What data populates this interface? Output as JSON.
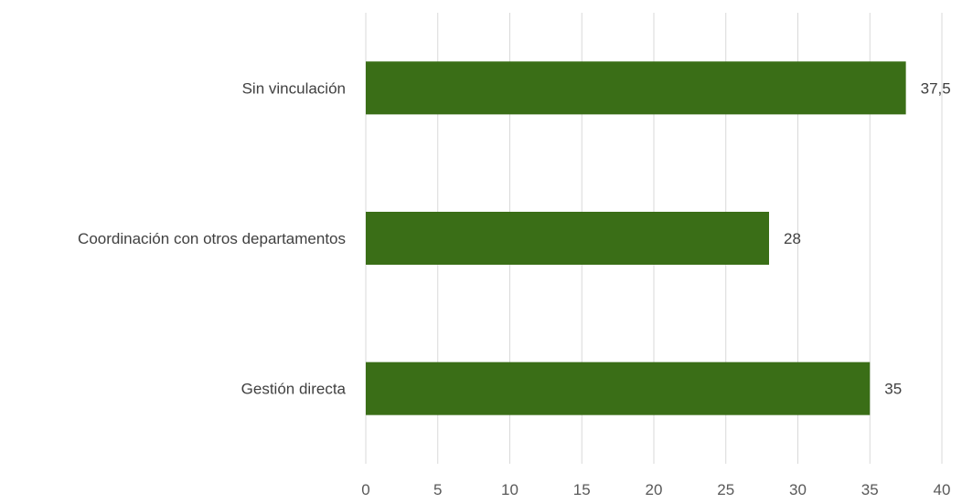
{
  "chart_data": {
    "type": "bar",
    "orientation": "horizontal",
    "categories": [
      "Sin vinculación",
      "Coordinación con otros departamentos",
      "Gestión directa"
    ],
    "values": [
      37.5,
      28,
      35
    ],
    "value_labels": [
      "37,5",
      "28",
      "35"
    ],
    "title": "",
    "xlabel": "",
    "ylabel": "",
    "xlim": [
      0,
      40
    ],
    "x_ticks": [
      "0",
      "5",
      "10",
      "15",
      "20",
      "25",
      "30",
      "35",
      "40"
    ],
    "grid": "vertical gridlines on",
    "legend": "none",
    "bar_color": "#3a6e17"
  }
}
